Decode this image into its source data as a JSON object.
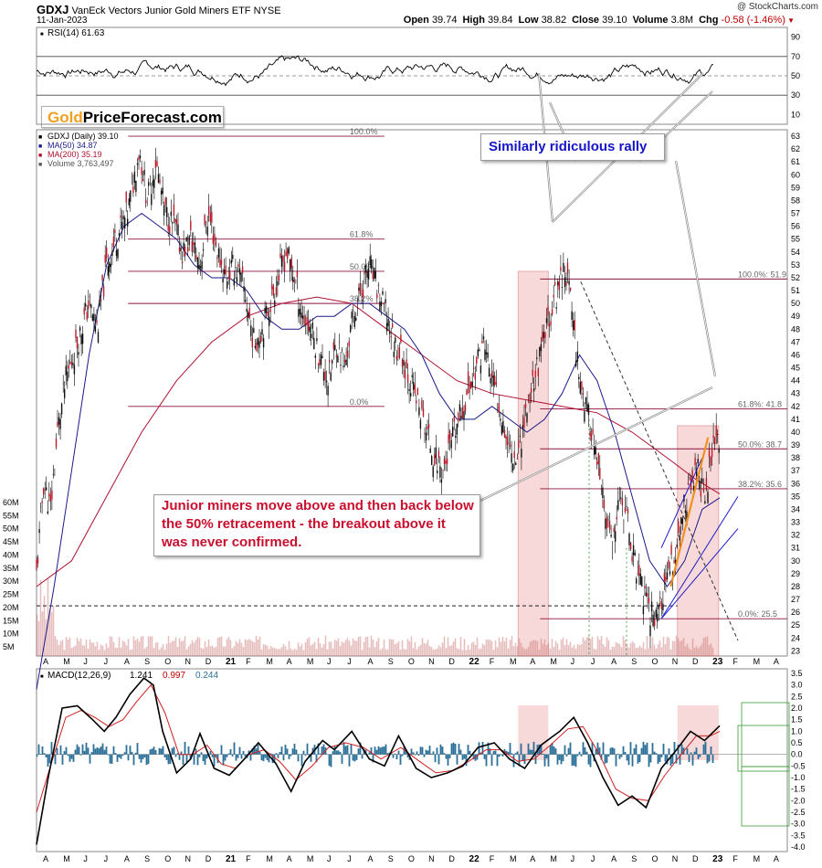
{
  "header": {
    "symbol": "GDXJ",
    "name": "VanEck Vectors Junior Gold Miners ETF",
    "exchange": "NYSE",
    "date": "11-Jan-2023",
    "credit": "@ StockCharts.com",
    "ohlc": [
      {
        "label": "Open",
        "value": "39.74"
      },
      {
        "label": "High",
        "value": "39.84"
      },
      {
        "label": "Low",
        "value": "38.82"
      },
      {
        "label": "Close",
        "value": "39.10"
      },
      {
        "label": "Volume",
        "value": "3.8M"
      },
      {
        "label": "Chg",
        "value": "-0.58 (-1.46%)"
      }
    ],
    "chg_color": "#c00000"
  },
  "logo": {
    "gold": "Gold",
    "rest": "PriceForecast.com",
    "gold_color": "#f0a020"
  },
  "annotations": {
    "rally_text": "Similarly ridiculous rally",
    "rally_color": "#1515c8",
    "breakout_text": "Junior miners move above and then back below the 50% retracement - the breakout above it was never confirmed.",
    "breakout_color": "#c8102e"
  },
  "chart_data": [
    {
      "type": "line",
      "title": "RSI(14) 61.63",
      "y_ticks": [
        90,
        70,
        50,
        30,
        10
      ],
      "ylim": [
        0,
        100
      ],
      "reference_lines": [
        70,
        50,
        30
      ],
      "last_value": 61.63
    },
    {
      "type": "candlestick",
      "legend": [
        {
          "label": "GDXJ (Daily) 39.10",
          "color": "#000000"
        },
        {
          "label": "MA(50) 34.87",
          "color": "#1a1a8c"
        },
        {
          "label": "MA(200) 35.19",
          "color": "#b01030"
        },
        {
          "label": "Volume 3,763,497",
          "color": "#555555"
        }
      ],
      "ylim": [
        22.6,
        63.5
      ],
      "y_ticks": [
        63,
        62,
        61,
        60,
        59,
        58,
        57,
        56,
        55,
        54,
        53,
        52,
        51,
        50,
        49,
        48,
        47,
        46,
        45,
        44,
        43,
        42,
        41,
        40,
        39,
        38,
        37,
        36,
        35,
        34,
        33,
        32,
        31,
        30,
        29,
        28,
        27,
        26,
        25,
        24,
        23
      ],
      "volume_ticks": [
        "60M",
        "55M",
        "50M",
        "45M",
        "40M",
        "35M",
        "30M",
        "25M",
        "20M",
        "15M",
        "10M",
        "5M"
      ],
      "x_labels": [
        "A",
        "M",
        "J",
        "J",
        "A",
        "S",
        "O",
        "N",
        "D",
        "21",
        "F",
        "M",
        "A",
        "M",
        "J",
        "J",
        "A",
        "S",
        "O",
        "N",
        "D",
        "22",
        "F",
        "M",
        "A",
        "M",
        "J",
        "J",
        "A",
        "S",
        "O",
        "N",
        "D",
        "23",
        "F",
        "M",
        "A"
      ],
      "price_path": [
        [
          0,
          29
        ],
        [
          6,
          36
        ],
        [
          12,
          34
        ],
        [
          18,
          40
        ],
        [
          25,
          44
        ],
        [
          35,
          47
        ],
        [
          45,
          50
        ],
        [
          52,
          48
        ],
        [
          60,
          53
        ],
        [
          68,
          55
        ],
        [
          78,
          57
        ],
        [
          88,
          62
        ],
        [
          95,
          58
        ],
        [
          102,
          61
        ],
        [
          110,
          57
        ],
        [
          118,
          56
        ],
        [
          125,
          54
        ],
        [
          132,
          55
        ],
        [
          140,
          53
        ],
        [
          147,
          57
        ],
        [
          155,
          54
        ],
        [
          162,
          52
        ],
        [
          170,
          53
        ],
        [
          178,
          51
        ],
        [
          186,
          47
        ],
        [
          193,
          48
        ],
        [
          200,
          50
        ],
        [
          207,
          52
        ],
        [
          214,
          54
        ],
        [
          221,
          52
        ],
        [
          228,
          49
        ],
        [
          235,
          48
        ],
        [
          242,
          46
        ],
        [
          250,
          44
        ],
        [
          257,
          47
        ],
        [
          264,
          45
        ],
        [
          271,
          49
        ],
        [
          278,
          51
        ],
        [
          285,
          53
        ],
        [
          292,
          51
        ],
        [
          300,
          49
        ],
        [
          306,
          47
        ],
        [
          313,
          46
        ],
        [
          320,
          44
        ],
        [
          327,
          42
        ],
        [
          334,
          40
        ],
        [
          341,
          38
        ],
        [
          348,
          37
        ],
        [
          355,
          39
        ],
        [
          362,
          41
        ],
        [
          369,
          43
        ],
        [
          376,
          45
        ],
        [
          383,
          47
        ],
        [
          390,
          44
        ],
        [
          397,
          42
        ],
        [
          404,
          39
        ],
        [
          411,
          38
        ],
        [
          418,
          41
        ],
        [
          425,
          44
        ],
        [
          432,
          46
        ],
        [
          439,
          49
        ],
        [
          446,
          51
        ],
        [
          452,
          53
        ],
        [
          458,
          50
        ],
        [
          464,
          45
        ],
        [
          470,
          42
        ],
        [
          476,
          40
        ],
        [
          482,
          36
        ],
        [
          488,
          33
        ],
        [
          494,
          31
        ],
        [
          500,
          35
        ],
        [
          506,
          33
        ],
        [
          512,
          30
        ],
        [
          518,
          28
        ],
        [
          524,
          26
        ],
        [
          530,
          25.9
        ],
        [
          536,
          27
        ],
        [
          542,
          29
        ],
        [
          548,
          31
        ],
        [
          554,
          34
        ],
        [
          560,
          36
        ],
        [
          566,
          37
        ],
        [
          572,
          35
        ],
        [
          578,
          38
        ],
        [
          582,
          39.6
        ],
        [
          585,
          39.1
        ]
      ],
      "ma50_path": [
        [
          0,
          20
        ],
        [
          15,
          28
        ],
        [
          30,
          37
        ],
        [
          45,
          46
        ],
        [
          60,
          53
        ],
        [
          75,
          56
        ],
        [
          90,
          57
        ],
        [
          105,
          56
        ],
        [
          120,
          55
        ],
        [
          135,
          53
        ],
        [
          150,
          52
        ],
        [
          165,
          52
        ],
        [
          180,
          51
        ],
        [
          195,
          49
        ],
        [
          210,
          48
        ],
        [
          225,
          48
        ],
        [
          240,
          49
        ],
        [
          255,
          49
        ],
        [
          270,
          50
        ],
        [
          285,
          50
        ],
        [
          300,
          49
        ],
        [
          315,
          48
        ],
        [
          330,
          46
        ],
        [
          345,
          43
        ],
        [
          360,
          41
        ],
        [
          375,
          41
        ],
        [
          390,
          42
        ],
        [
          405,
          41
        ],
        [
          420,
          40
        ],
        [
          435,
          41
        ],
        [
          450,
          43
        ],
        [
          465,
          46
        ],
        [
          480,
          44
        ],
        [
          495,
          40
        ],
        [
          510,
          35
        ],
        [
          525,
          30
        ],
        [
          540,
          28
        ],
        [
          555,
          30
        ],
        [
          570,
          34
        ],
        [
          585,
          34.9
        ]
      ],
      "ma200_path": [
        [
          0,
          28
        ],
        [
          30,
          30
        ],
        [
          60,
          35
        ],
        [
          90,
          40
        ],
        [
          120,
          44
        ],
        [
          150,
          47
        ],
        [
          180,
          49
        ],
        [
          210,
          50
        ],
        [
          240,
          50.5
        ],
        [
          270,
          50
        ],
        [
          300,
          48
        ],
        [
          330,
          46
        ],
        [
          360,
          44
        ],
        [
          390,
          43
        ],
        [
          420,
          42.5
        ],
        [
          450,
          42
        ],
        [
          480,
          41.5
        ],
        [
          510,
          40
        ],
        [
          540,
          38
        ],
        [
          565,
          36.3
        ],
        [
          585,
          35.2
        ]
      ],
      "fib_lines": [
        {
          "label": "100.0%",
          "y": 63,
          "x1": 100,
          "x2": 380
        },
        {
          "label": "61.8%",
          "y": 55,
          "x1": 100,
          "x2": 380
        },
        {
          "label": "50.0%",
          "y": 52.5,
          "x1": 100,
          "x2": 380
        },
        {
          "label": "38.2%",
          "y": 50,
          "x1": 100,
          "x2": 380
        },
        {
          "label": "0.0%",
          "y": 42,
          "x1": 100,
          "x2": 380
        },
        {
          "label": "100.0%: 51.9",
          "y": 51.9,
          "x1": 550,
          "x2": 820
        },
        {
          "label": "61.8%: 41.8",
          "y": 41.8,
          "x1": 550,
          "x2": 820
        },
        {
          "label": "50.0%: 38.7",
          "y": 38.7,
          "x1": 550,
          "x2": 820
        },
        {
          "label": "38.2%: 35.6",
          "y": 35.6,
          "x1": 550,
          "x2": 820
        },
        {
          "label": "0.0%: 25.5",
          "y": 25.5,
          "x1": 550,
          "x2": 820
        }
      ],
      "support_line_y": 26.5
    },
    {
      "type": "line",
      "title": "MACD(12,26,9)",
      "values_text": [
        {
          "label": "1.241",
          "color": "#000000"
        },
        {
          "label": "0.997",
          "color": "#c00000"
        },
        {
          "label": "0.244",
          "color": "#2a6f97"
        }
      ],
      "y_ticks": [
        "3.5",
        "3.0",
        "2.5",
        "2.0",
        "1.5",
        "1.0",
        "0.5",
        "0.0",
        "-0.5",
        "-1.0",
        "-1.5",
        "-2.0",
        "-2.5",
        "-3.0",
        "-3.5",
        "-4.0"
      ],
      "ylim": [
        -4.2,
        3.7
      ],
      "macd_path": [
        [
          0,
          -3.9
        ],
        [
          10,
          -1.0
        ],
        [
          22,
          2.0
        ],
        [
          35,
          2.1
        ],
        [
          48,
          1.5
        ],
        [
          58,
          1.0
        ],
        [
          68,
          1.6
        ],
        [
          80,
          2.6
        ],
        [
          92,
          3.3
        ],
        [
          100,
          3.0
        ],
        [
          108,
          1.0
        ],
        [
          120,
          -0.8
        ],
        [
          132,
          -0.2
        ],
        [
          140,
          0.9
        ],
        [
          152,
          -0.6
        ],
        [
          165,
          -0.9
        ],
        [
          178,
          -0.2
        ],
        [
          190,
          0.5
        ],
        [
          205,
          -0.4
        ],
        [
          218,
          -1.6
        ],
        [
          230,
          -0.3
        ],
        [
          245,
          0.6
        ],
        [
          255,
          0.2
        ],
        [
          270,
          1.0
        ],
        [
          285,
          -0.2
        ],
        [
          298,
          -0.5
        ],
        [
          310,
          0.8
        ],
        [
          325,
          -0.6
        ],
        [
          338,
          -1.0
        ],
        [
          352,
          -0.8
        ],
        [
          365,
          -0.5
        ],
        [
          378,
          0.3
        ],
        [
          392,
          0.5
        ],
        [
          405,
          -0.2
        ],
        [
          418,
          -0.6
        ],
        [
          432,
          0.4
        ],
        [
          448,
          1.0
        ],
        [
          460,
          1.6
        ],
        [
          472,
          0.5
        ],
        [
          485,
          -1.0
        ],
        [
          498,
          -2.2
        ],
        [
          510,
          -1.8
        ],
        [
          522,
          -2.3
        ],
        [
          535,
          -0.6
        ],
        [
          548,
          0.2
        ],
        [
          560,
          1.0
        ],
        [
          572,
          0.6
        ],
        [
          585,
          1.24
        ]
      ],
      "signal_path": [
        [
          0,
          -2.5
        ],
        [
          12,
          -0.5
        ],
        [
          25,
          1.6
        ],
        [
          38,
          1.9
        ],
        [
          50,
          1.6
        ],
        [
          62,
          1.2
        ],
        [
          74,
          1.5
        ],
        [
          86,
          2.3
        ],
        [
          98,
          3.0
        ],
        [
          110,
          1.8
        ],
        [
          122,
          0.0
        ],
        [
          134,
          0.0
        ],
        [
          146,
          0.4
        ],
        [
          158,
          -0.4
        ],
        [
          170,
          -0.6
        ],
        [
          182,
          0.0
        ],
        [
          195,
          0.2
        ],
        [
          208,
          -0.3
        ],
        [
          222,
          -1.1
        ],
        [
          236,
          -0.5
        ],
        [
          250,
          0.3
        ],
        [
          265,
          0.5
        ],
        [
          280,
          0.3
        ],
        [
          295,
          -0.2
        ],
        [
          312,
          0.3
        ],
        [
          328,
          -0.3
        ],
        [
          342,
          -0.8
        ],
        [
          356,
          -0.7
        ],
        [
          370,
          -0.3
        ],
        [
          385,
          0.2
        ],
        [
          398,
          0.2
        ],
        [
          412,
          -0.3
        ],
        [
          426,
          -0.2
        ],
        [
          440,
          0.4
        ],
        [
          455,
          1.1
        ],
        [
          468,
          1.2
        ],
        [
          482,
          0.0
        ],
        [
          496,
          -1.5
        ],
        [
          510,
          -1.9
        ],
        [
          524,
          -2.0
        ],
        [
          538,
          -0.9
        ],
        [
          552,
          0.0
        ],
        [
          565,
          0.8
        ],
        [
          577,
          0.8
        ],
        [
          585,
          1.0
        ]
      ]
    }
  ]
}
